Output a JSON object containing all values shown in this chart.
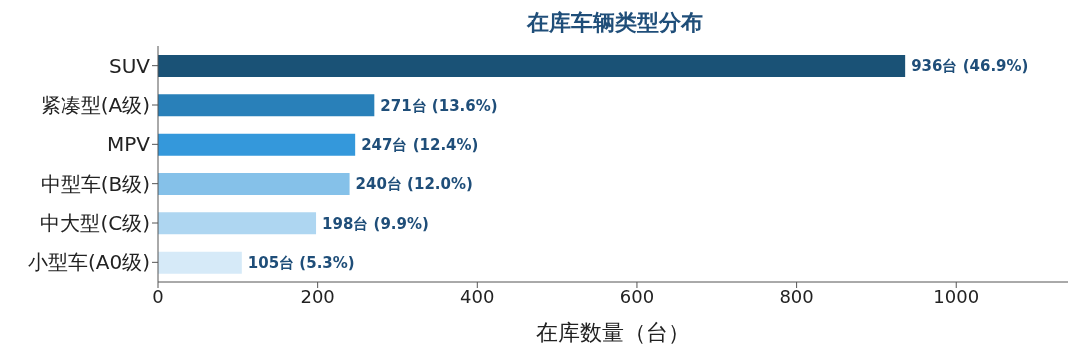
{
  "chart_data": {
    "type": "bar",
    "orientation": "horizontal",
    "title": "在库车辆类型分布",
    "xlabel": "在库数量（台）",
    "categories": [
      "SUV",
      "紧凑型(A级)",
      "MPV",
      "中型车(B级)",
      "中大型(C级)",
      "小型车(A0级)"
    ],
    "values": [
      936,
      271,
      247,
      240,
      198,
      105
    ],
    "colors": [
      "#1a5276",
      "#2980b9",
      "#3498db",
      "#85c1e9",
      "#aed6f1",
      "#d6eaf8"
    ],
    "value_labels": [
      "936台 (46.9%)",
      "271台 (13.6%)",
      "247台 (12.4%)",
      "240台 (12.0%)",
      "198台 (9.9%)",
      "105台 (5.3%)"
    ],
    "xlim": [
      0,
      1140
    ],
    "xticks": [
      0,
      200,
      400,
      600,
      800,
      1000
    ],
    "grid": false,
    "legend": false
  }
}
